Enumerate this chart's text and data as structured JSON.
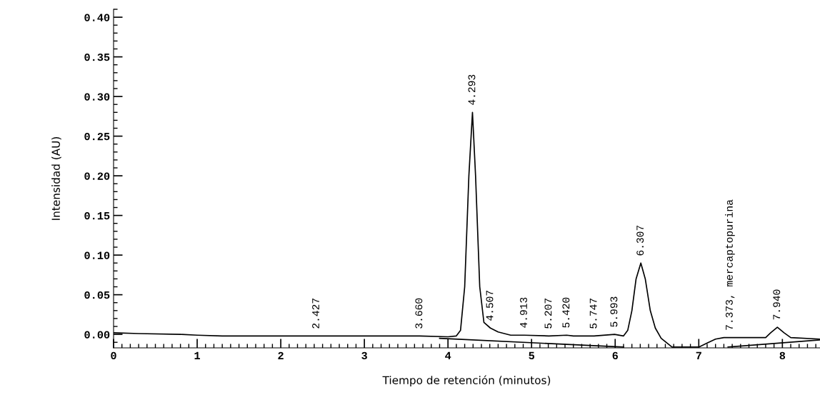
{
  "chart_data": {
    "type": "line",
    "xlabel": "Tiempo de retención (minutos)",
    "ylabel": "Intensidad (AU)",
    "xlim": [
      0,
      8.45
    ],
    "ylim": [
      -0.017,
      0.41
    ],
    "xticks": [
      0,
      1,
      2,
      3,
      4,
      5,
      6,
      7,
      8
    ],
    "yticks": [
      {
        "value": 0,
        "label": "0.00"
      },
      {
        "value": 0.05,
        "label": "0.05"
      },
      {
        "value": 0.1,
        "label": "0.10"
      },
      {
        "value": 0.15,
        "label": "0.15"
      },
      {
        "value": 0.2,
        "label": "0.20"
      },
      {
        "value": 0.25,
        "label": "0.25"
      },
      {
        "value": 0.3,
        "label": "0.30"
      },
      {
        "value": 0.35,
        "label": "0.35"
      },
      {
        "value": 0.4,
        "label": "0.40"
      }
    ],
    "grid": false,
    "legend": false,
    "marker": "none",
    "line_style": "solid",
    "series": [
      {
        "color": "#000000",
        "x": [
          0,
          0.3,
          0.8,
          1.0,
          1.3,
          2.0,
          2.427,
          3.0,
          3.5,
          3.66,
          4.0,
          4.1,
          4.15,
          4.2,
          4.25,
          4.293,
          4.33,
          4.38,
          4.43,
          4.507,
          4.6,
          4.75,
          4.913,
          5.207,
          5.42,
          5.5,
          5.747,
          5.993,
          6.1,
          6.15,
          6.2,
          6.25,
          6.307,
          6.36,
          6.42,
          6.48,
          6.55,
          6.68,
          7.0,
          7.1,
          7.2,
          7.3,
          7.373,
          7.8,
          7.86,
          7.94,
          8.02,
          8.1,
          8.45
        ],
        "values": [
          0.002,
          0.001,
          0.0,
          -0.001,
          -0.002,
          -0.002,
          -0.002,
          -0.002,
          -0.002,
          -0.002,
          -0.003,
          -0.002,
          0.005,
          0.06,
          0.2,
          0.28,
          0.2,
          0.06,
          0.015,
          0.008,
          0.003,
          -0.001,
          -0.001,
          -0.002,
          -0.001,
          -0.002,
          -0.002,
          0.0,
          -0.002,
          0.005,
          0.03,
          0.07,
          0.09,
          0.07,
          0.03,
          0.008,
          -0.005,
          -0.016,
          -0.016,
          -0.011,
          -0.006,
          -0.004,
          -0.004,
          -0.004,
          0.002,
          0.009,
          0.002,
          -0.004,
          -0.006
        ]
      },
      {
        "color": "#000000",
        "x": [
          3.9,
          6.1,
          6.11,
          7.35,
          8.45
        ],
        "values": [
          -0.005,
          -0.016,
          null,
          -0.016,
          -0.007
        ]
      }
    ],
    "annotations": [
      {
        "text": "2.427",
        "x": 2.427,
        "y": -0.002
      },
      {
        "text": "3.660",
        "x": 3.66,
        "y": -0.002
      },
      {
        "text": "4.293",
        "x": 4.293,
        "y": 0.28
      },
      {
        "text": "4.507",
        "x": 4.507,
        "y": 0.008
      },
      {
        "text": "4.913",
        "x": 4.913,
        "y": -0.001
      },
      {
        "text": "5.207",
        "x": 5.207,
        "y": -0.002
      },
      {
        "text": "5.420",
        "x": 5.42,
        "y": -0.001
      },
      {
        "text": "5.747",
        "x": 5.747,
        "y": -0.002
      },
      {
        "text": "5.993",
        "x": 5.993,
        "y": 0.0
      },
      {
        "text": "6.307",
        "x": 6.307,
        "y": 0.09
      },
      {
        "text": "7.373, mercaptopurina",
        "x": 7.373,
        "y": -0.004
      },
      {
        "text": "7.940",
        "x": 7.94,
        "y": 0.009
      }
    ]
  }
}
